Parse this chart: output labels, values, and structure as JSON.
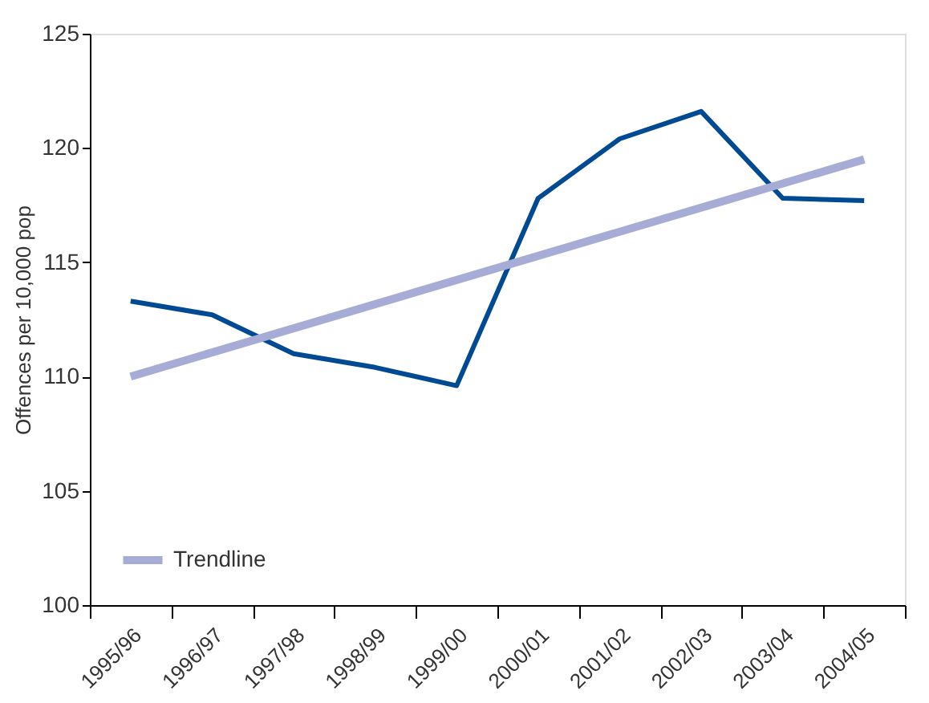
{
  "chart_data": {
    "type": "line",
    "ylabel": "Offences per 10,000 pop",
    "categories": [
      "1995/96",
      "1996/97",
      "1997/98",
      "1998/99",
      "1999/00",
      "2000/01",
      "2001/02",
      "2002/03",
      "2003/04",
      "2004/05"
    ],
    "series": [
      {
        "color": "#004a93",
        "values": [
          113.3,
          112.7,
          111.0,
          110.4,
          109.6,
          117.8,
          120.4,
          121.6,
          117.8,
          117.7
        ]
      },
      {
        "name": "Trendline",
        "color": "#a6acd6",
        "x": [
          "1995/96",
          "2004/05"
        ],
        "values": [
          110.0,
          119.5
        ]
      }
    ],
    "ylim": [
      100,
      125
    ],
    "yticks": [
      100,
      105,
      110,
      115,
      120,
      125
    ],
    "grid": false,
    "legend": "bottom left",
    "marker": "none",
    "line_style": "solid"
  }
}
